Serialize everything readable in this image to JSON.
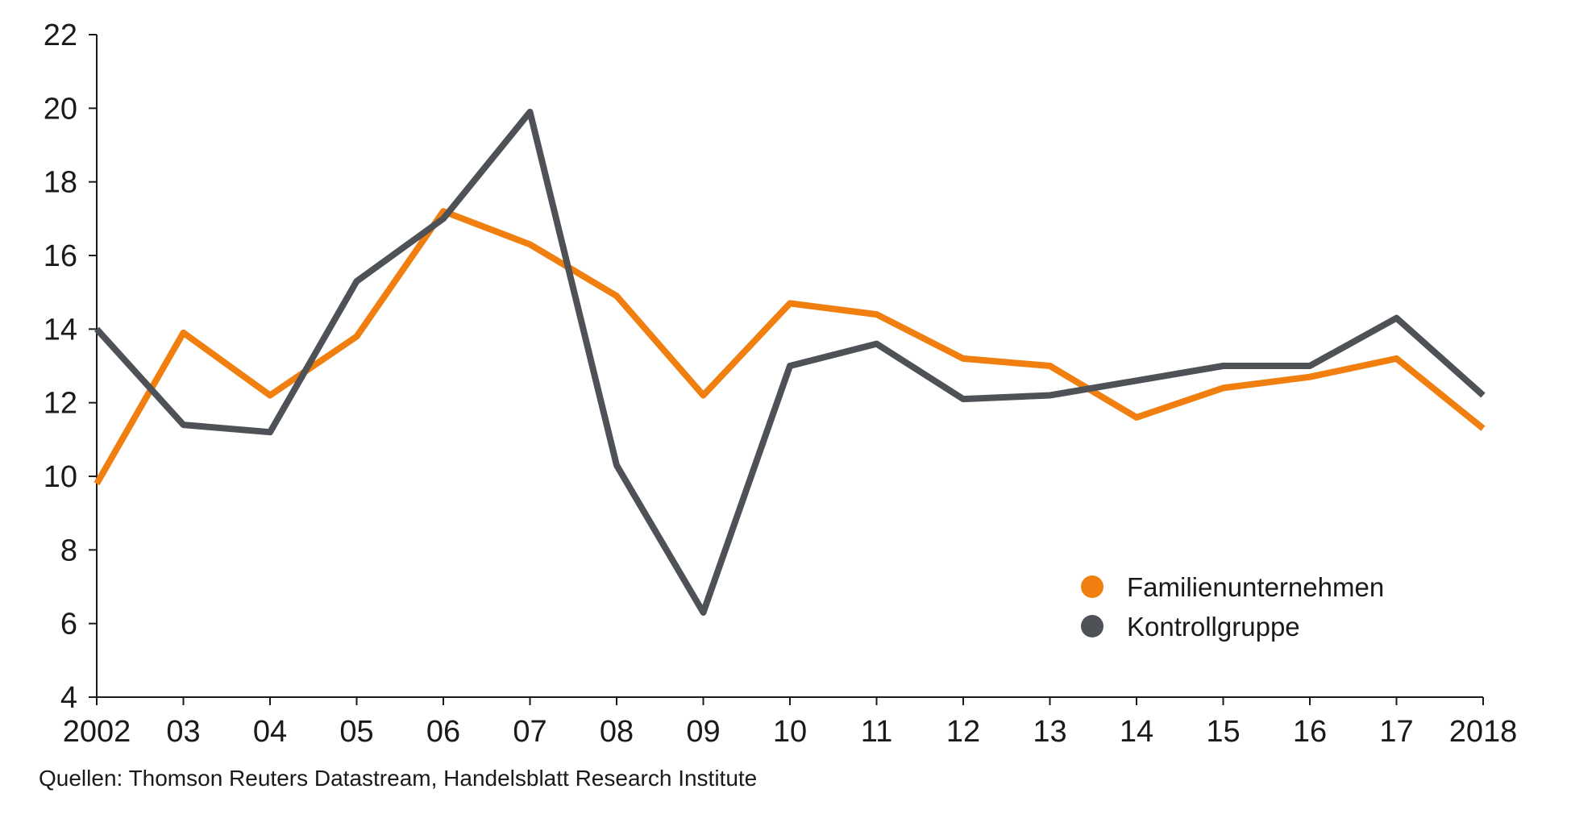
{
  "chart_data": {
    "type": "line",
    "categories": [
      "2002",
      "03",
      "04",
      "05",
      "06",
      "07",
      "08",
      "09",
      "10",
      "11",
      "12",
      "13",
      "14",
      "15",
      "16",
      "17",
      "2018"
    ],
    "series": [
      {
        "name": "Familienunternehmen",
        "color": "#f07f0f",
        "values": [
          9.8,
          13.9,
          12.2,
          13.8,
          17.2,
          16.3,
          14.9,
          12.2,
          14.7,
          14.4,
          13.2,
          13.0,
          11.6,
          12.4,
          12.7,
          13.2,
          11.3
        ]
      },
      {
        "name": "Kontrollgruppe",
        "color": "#4e5256",
        "values": [
          14.0,
          11.4,
          11.2,
          15.3,
          17.0,
          19.9,
          10.3,
          6.3,
          13.0,
          13.6,
          12.1,
          12.2,
          12.6,
          13.0,
          13.0,
          14.3,
          12.2
        ]
      }
    ],
    "ylim": [
      4,
      22
    ],
    "yticks": [
      "4",
      "6",
      "8",
      "10",
      "12",
      "14",
      "16",
      "18",
      "20",
      "22"
    ],
    "grid": false,
    "legend_position": "bottom-right"
  },
  "source_note": "Quellen: Thomson Reuters Datastream, Handelsblatt Research Institute"
}
